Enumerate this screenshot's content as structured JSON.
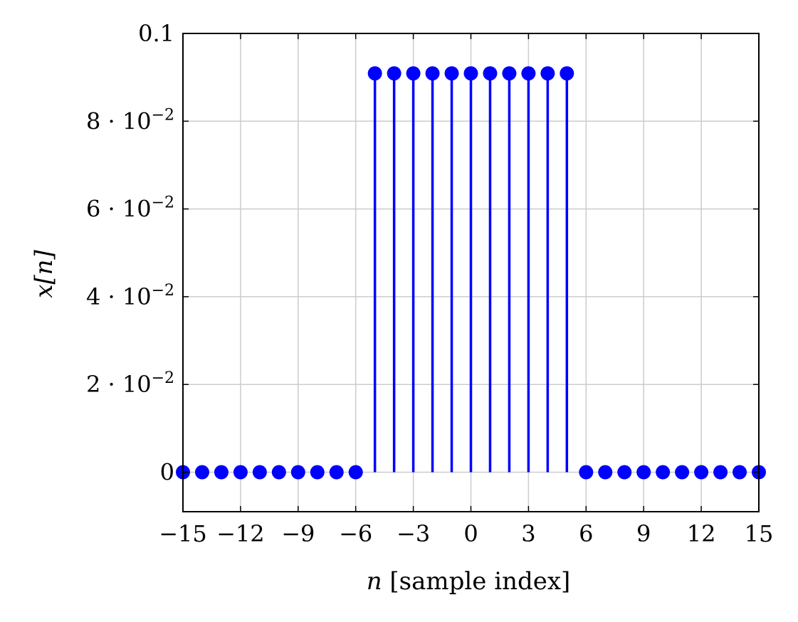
{
  "chart_data": {
    "type": "scatter",
    "subtype": "stem",
    "title": "",
    "xlabel": {
      "var": "n",
      "text": " [sample index]"
    },
    "ylabel": {
      "var": "x[n]"
    },
    "xlim": [
      -15,
      15
    ],
    "ylim": [
      -0.009,
      0.1
    ],
    "grid": true,
    "legend": "none",
    "colors": {
      "series": "#0000ff",
      "grid": "#cccccc",
      "axis": "#000000"
    },
    "x_ticks": [
      {
        "value": -15,
        "label": "−15"
      },
      {
        "value": -12,
        "label": "−12"
      },
      {
        "value": -9,
        "label": "−9"
      },
      {
        "value": -6,
        "label": "−6"
      },
      {
        "value": -3,
        "label": "−3"
      },
      {
        "value": 0,
        "label": "0"
      },
      {
        "value": 3,
        "label": "3"
      },
      {
        "value": 6,
        "label": "6"
      },
      {
        "value": 9,
        "label": "9"
      },
      {
        "value": 12,
        "label": "12"
      },
      {
        "value": 15,
        "label": "15"
      }
    ],
    "y_ticks": [
      {
        "value": 0,
        "label": "0"
      },
      {
        "value": 0.02,
        "mantissa": "2",
        "exponent": "−2"
      },
      {
        "value": 0.04,
        "mantissa": "4",
        "exponent": "−2"
      },
      {
        "value": 0.06,
        "mantissa": "6",
        "exponent": "−2"
      },
      {
        "value": 0.08,
        "mantissa": "8",
        "exponent": "−2"
      },
      {
        "value": 0.1,
        "label": "0.1"
      }
    ],
    "series": [
      {
        "x": [
          -15,
          -14,
          -13,
          -12,
          -11,
          -10,
          -9,
          -8,
          -7,
          -6,
          -5,
          -4,
          -3,
          -2,
          -1,
          0,
          1,
          2,
          3,
          4,
          5,
          6,
          7,
          8,
          9,
          10,
          11,
          12,
          13,
          14,
          15
        ],
        "y": [
          0,
          0,
          0,
          0,
          0,
          0,
          0,
          0,
          0,
          0,
          0.0909,
          0.0909,
          0.0909,
          0.0909,
          0.0909,
          0.0909,
          0.0909,
          0.0909,
          0.0909,
          0.0909,
          0.0909,
          0,
          0,
          0,
          0,
          0,
          0,
          0,
          0,
          0,
          0
        ]
      }
    ]
  }
}
